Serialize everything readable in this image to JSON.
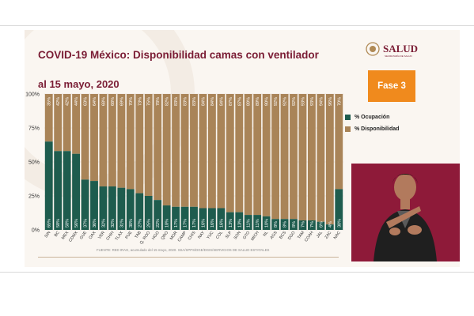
{
  "slide": {
    "title": "COVID-19 México: Disponibilidad camas con ventilador",
    "subtitle": "al 15 mayo, 2020",
    "logo_text": "SALUD",
    "logo_subtext": "SECRETARÍA DE SALUD",
    "phase_badge": "Fase 3",
    "footer": "FUENTE: RED IRAG, acumulado del 15 mayo, 2020.    SSA/SPPS/DGE/DGIS/SERVICIOS DE SALUD ESTATALES"
  },
  "colors": {
    "occupancy": "#1e5c4e",
    "availability": "#a98458",
    "title": "#7a1c34",
    "phase_badge": "#f08a1d",
    "interpreter_bg": "#8e1a39"
  },
  "chart_data": {
    "type": "bar",
    "stacked": true,
    "title": "COVID-19 México: Disponibilidad camas con ventilador",
    "subtitle": "al 15 mayo, 2020",
    "categories": [
      "SIN",
      "BC",
      "MEX",
      "CDMX",
      "GUE",
      "OAX",
      "VER",
      "CHIH",
      "TLAX",
      "PUE",
      "TAB",
      "Q. ROO",
      "HGO",
      "QRO",
      "MOR",
      "CAMP",
      "CHIS",
      "NAY",
      "YUC",
      "COL",
      "SLP",
      "SON",
      "GTO",
      "MICH",
      "NL",
      "AGS",
      "BCS",
      "DGO",
      "TAM",
      "COAH",
      "JAL",
      "ZAC",
      "NAC"
    ],
    "series": [
      {
        "name": "% Ocupación",
        "values": [
          65,
          58,
          58,
          56,
          37,
          36,
          32,
          32,
          31,
          30,
          27,
          25,
          22,
          18,
          17,
          17,
          17,
          16,
          16,
          16,
          13,
          13,
          11,
          11,
          10,
          8,
          8,
          8,
          7,
          7,
          6,
          4,
          30
        ]
      },
      {
        "name": "% Disponibilidad",
        "values": [
          35,
          42,
          42,
          44,
          63,
          64,
          68,
          68,
          69,
          70,
          73,
          75,
          78,
          82,
          83,
          83,
          83,
          84,
          84,
          84,
          87,
          87,
          89,
          89,
          90,
          92,
          92,
          92,
          93,
          93,
          94,
          96,
          70
        ]
      }
    ],
    "yticks": [
      "0%",
      "25%",
      "50%",
      "75%",
      "100%"
    ],
    "ylim": [
      0,
      100
    ],
    "legend_position": "right"
  }
}
